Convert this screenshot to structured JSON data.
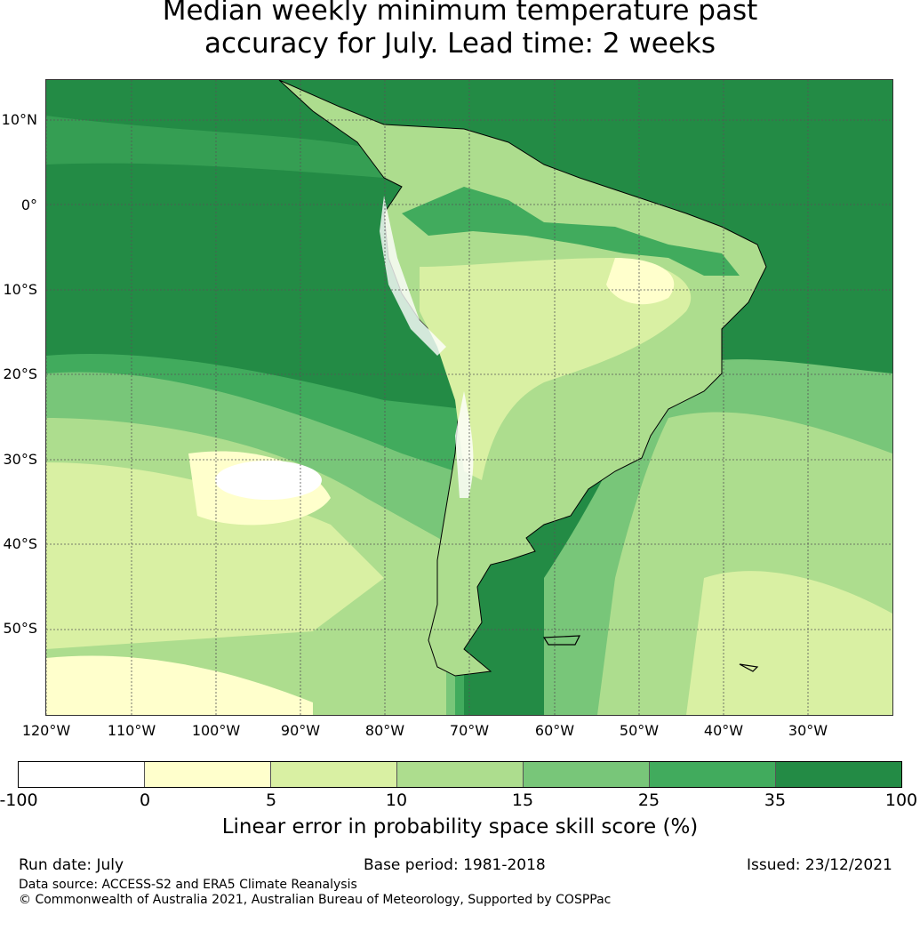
{
  "title_line1": "Median weekly minimum temperature past",
  "title_line2": "accuracy for July. Lead time: 2 weeks",
  "map": {
    "lat_labels": [
      "10°N",
      "0°",
      "10°S",
      "20°S",
      "30°S",
      "40°S",
      "50°S"
    ],
    "lon_labels": [
      "120°W",
      "110°W",
      "100°W",
      "90°W",
      "80°W",
      "70°W",
      "60°W",
      "50°W",
      "40°W",
      "30°W"
    ],
    "region": "South America",
    "gridlines": true
  },
  "colorbar": {
    "ticks": [
      "-100",
      "0",
      "5",
      "10",
      "15",
      "25",
      "35",
      "100"
    ],
    "colors": [
      "#ffffff",
      "#ffffcc",
      "#d9f0a3",
      "#addd8e",
      "#78c679",
      "#41ab5d",
      "#238b45"
    ],
    "label": "Linear error in probability space skill score (%)"
  },
  "footer": {
    "run_date": "Run date: July",
    "base_period": "Base period: 1981-2018",
    "issued": "Issued: 23/12/2021",
    "data_source": "Data source: ACCESS-S2 and ERA5 Climate Reanalysis",
    "copyright": "© Commonwealth of Australia 2021, Australian Bureau of Meteorology, Supported by COSPPac"
  }
}
